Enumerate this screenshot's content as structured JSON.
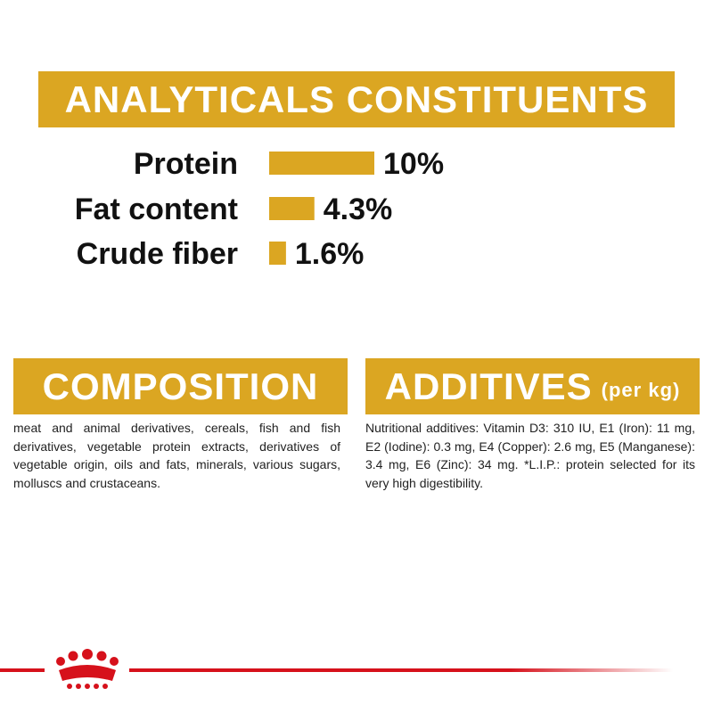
{
  "analyticals": {
    "title": "ANALYTICALS CONSTITUENTS",
    "items": [
      {
        "label": "Protein",
        "value": 10,
        "value_label": "10%"
      },
      {
        "label": "Fat content",
        "value": 4.3,
        "value_label": "4.3%"
      },
      {
        "label": "Crude fiber",
        "value": 1.6,
        "value_label": "1.6%"
      }
    ]
  },
  "composition": {
    "title": "COMPOSITION",
    "text": "meat and animal derivatives, cereals, fish and fish derivatives, vegetable protein extracts, derivatives of vegetable origin, oils and fats, minerals, various sugars, molluscs and crustaceans."
  },
  "additives": {
    "title": "ADDITIVES",
    "unit": "(per kg)",
    "text": "Nutritional additives: Vitamin D3: 310 IU, E1 (Iron): 11 mg, E2 (Iodine): 0.3 mg, E4 (Copper): 2.6 mg, E5 (Manganese): 3.4 mg, E6 (Zinc): 34 mg. *L.I.P.: protein selected for its very high digestibility."
  }
}
